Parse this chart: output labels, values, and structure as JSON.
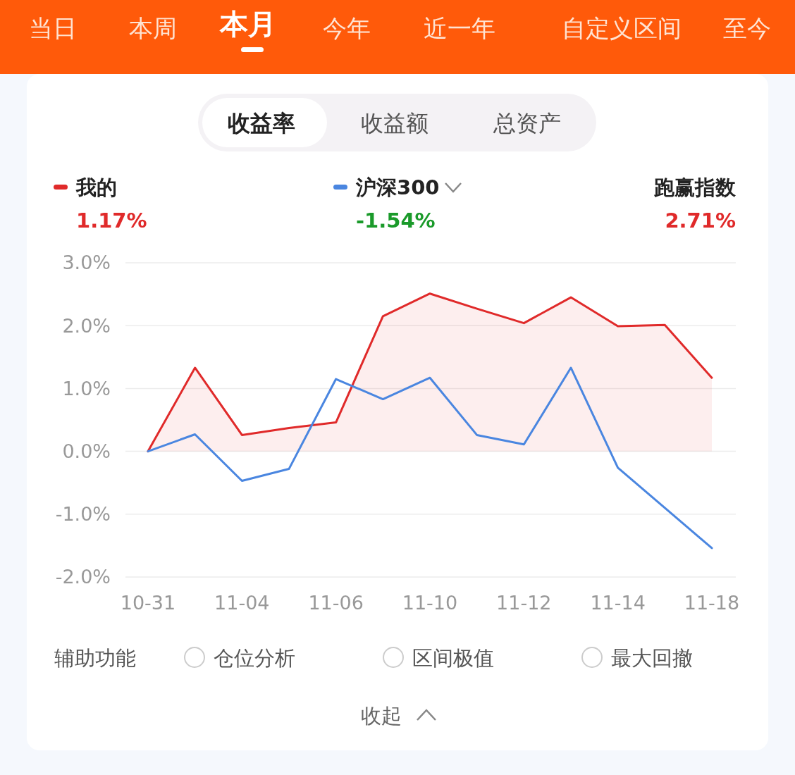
{
  "chart_data": {
    "type": "line",
    "categories": [
      "10-31",
      null,
      "11-04",
      null,
      "11-06",
      null,
      "11-10",
      null,
      "11-12",
      null,
      "11-14",
      null,
      "11-18"
    ],
    "series": [
      {
        "name": "我的",
        "color": "#e02a2a",
        "type": "area",
        "values": [
          0.0,
          1.33,
          0.26,
          0.37,
          0.46,
          2.15,
          2.51,
          2.27,
          2.04,
          2.45,
          1.99,
          2.01,
          1.17
        ]
      },
      {
        "name": "沪深300",
        "color": "#4a86e0",
        "values": [
          0.0,
          0.27,
          -0.47,
          -0.28,
          1.15,
          0.83,
          1.17,
          0.26,
          0.11,
          1.33,
          -0.26,
          -0.9,
          -1.54
        ]
      }
    ],
    "ylim": [
      -2,
      3
    ],
    "yticks": [
      {
        "value": -2,
        "label": "-2.0%"
      },
      {
        "value": -1,
        "label": "-1.0%"
      },
      {
        "value": 0,
        "label": "0.0%"
      },
      {
        "value": 1,
        "label": "1.0%"
      },
      {
        "value": 2,
        "label": "2.0%"
      },
      {
        "value": 3,
        "label": "3.0%"
      }
    ],
    "grid": "y",
    "legend": "top",
    "marker": "none",
    "line_style": "solid",
    "annotations": [
      "当日",
      "本周",
      "本月",
      "今年",
      "近一年",
      "自定义区间",
      "至今",
      "收益率",
      "收益额",
      "总资产",
      "1.17%",
      "-1.54%",
      "跑赢指数",
      "2.71%",
      "辅助功能",
      "仓位分析",
      "区间极值",
      "最大回撤",
      "收起"
    ]
  }
}
